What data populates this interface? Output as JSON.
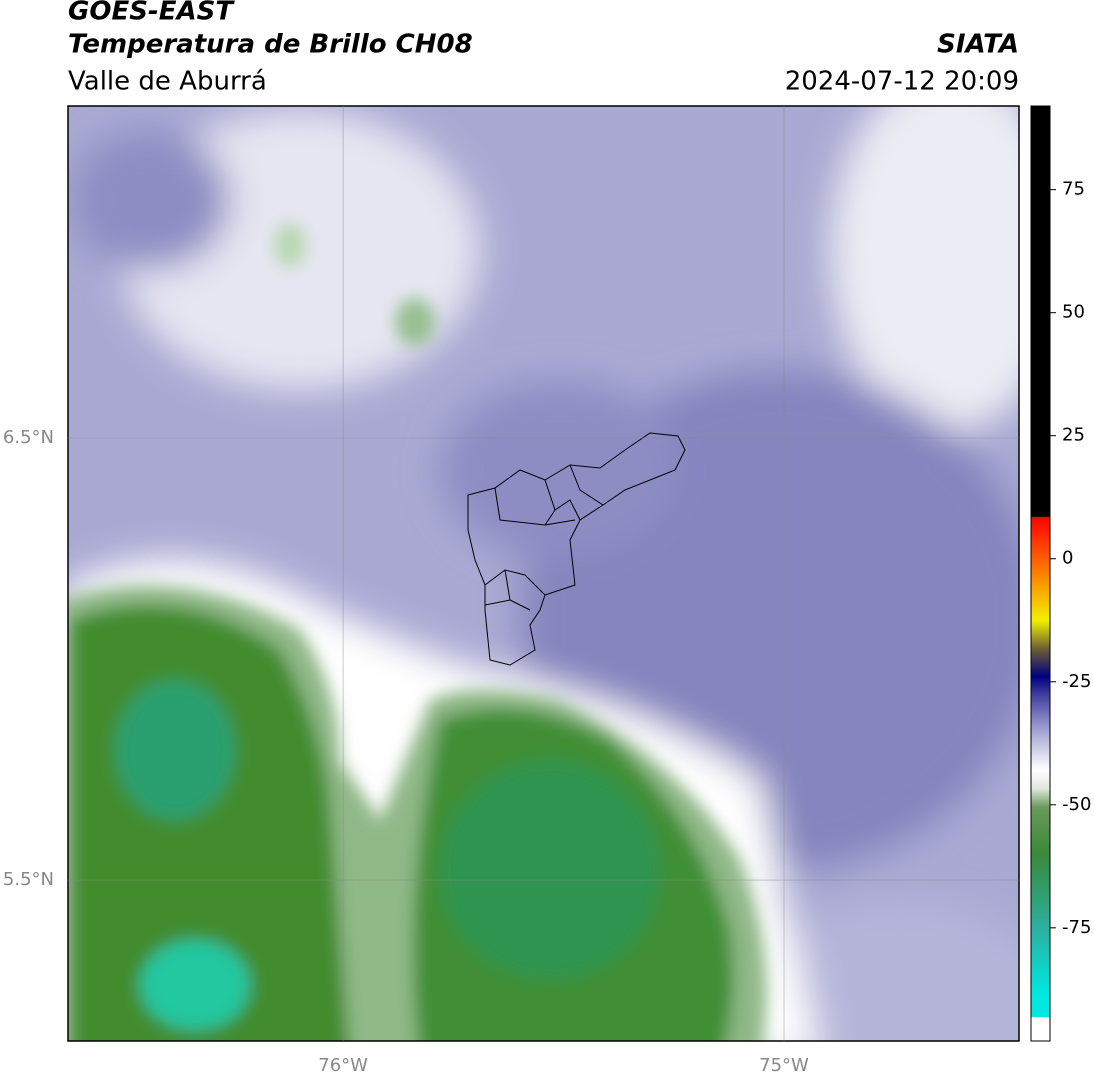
{
  "header": {
    "title": "GOES-EAST",
    "subtitle": "Temperatura de Brillo CH08",
    "region": "Valle de Aburrá",
    "source": "SIATA",
    "datetime": "2024-07-12 20:09"
  },
  "map": {
    "xlim": [
      -76.624,
      -74.467
    ],
    "ylim": [
      5.136,
      7.251
    ],
    "xticks": [
      {
        "value": -76,
        "label": "76°W"
      },
      {
        "value": -75,
        "label": "75°W"
      }
    ],
    "yticks": [
      {
        "value": 6.5,
        "label": "6.5°N"
      },
      {
        "value": 5.5,
        "label": "5.5°N"
      }
    ],
    "grid": true
  },
  "colorbar": {
    "clim": [
      -98,
      92
    ],
    "ticks": [
      75,
      50,
      25,
      0,
      -25,
      -50,
      -75
    ]
  }
}
